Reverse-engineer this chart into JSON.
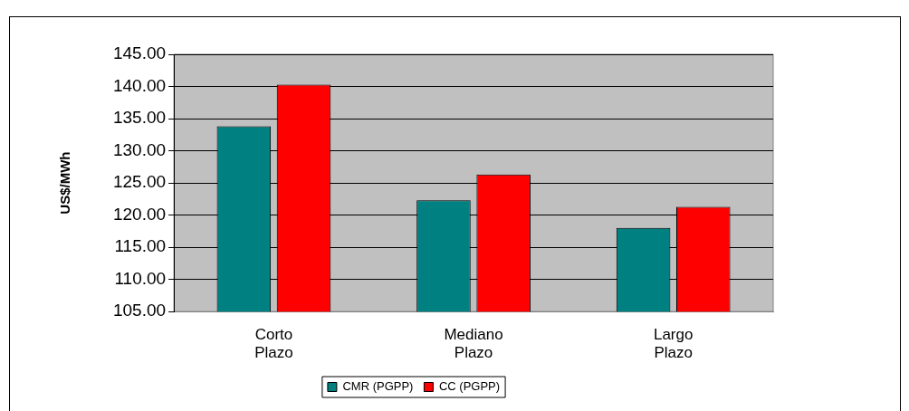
{
  "chart_data": {
    "type": "bar",
    "ylabel": "US$/MWh",
    "categories": [
      "Corto Plazo",
      "Mediano Plazo",
      "Largo Plazo"
    ],
    "series": [
      {
        "name": "CMR (PGPP)",
        "color": "#008080",
        "values": [
          133.8,
          122.3,
          118.0
        ]
      },
      {
        "name": "CC (PGPP)",
        "color": "#ff0000",
        "values": [
          140.3,
          126.3,
          121.3
        ]
      }
    ],
    "ylim": [
      105,
      145
    ],
    "yticks": [
      {
        "value": 105,
        "label": "105.00"
      },
      {
        "value": 110,
        "label": "110.00"
      },
      {
        "value": 115,
        "label": "115.00"
      },
      {
        "value": 120,
        "label": "120.00"
      },
      {
        "value": 125,
        "label": "125.00"
      },
      {
        "value": 130,
        "label": "130.00"
      },
      {
        "value": 135,
        "label": "135.00"
      },
      {
        "value": 140,
        "label": "140.00"
      },
      {
        "value": 145,
        "label": "145.00"
      }
    ],
    "grid": "y",
    "legend": "bottom"
  }
}
